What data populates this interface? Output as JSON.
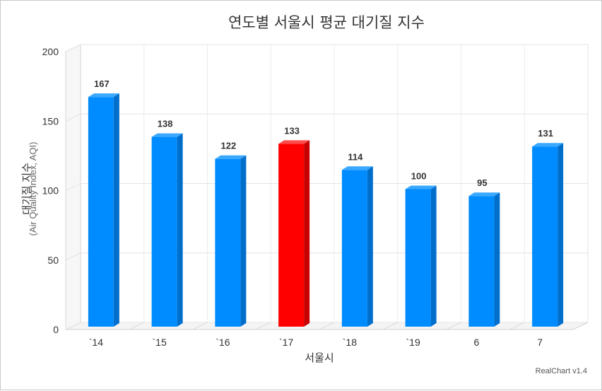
{
  "chart_data": {
    "type": "bar",
    "title": "연도별 서울시 평균 대기질 지수",
    "xlabel": "서울시",
    "ylabel": "대기질 지수",
    "ylabel_sub": "(Air Quality Index, AQI)",
    "categories": [
      "`14",
      "`15",
      "`16",
      "`17",
      "`18",
      "`19",
      "6",
      "7"
    ],
    "values": [
      167,
      138,
      122,
      133,
      114,
      100,
      95,
      131
    ],
    "highlight_index": 3,
    "ylim": [
      0,
      200
    ],
    "yticks": [
      0,
      50,
      100,
      150,
      200
    ],
    "grid": true,
    "colors": {
      "bar_front": "#008cff",
      "bar_side": "#006fcc",
      "bar_top": "#3aa8ff",
      "highlight_front": "#ff0000",
      "highlight_side": "#c80000",
      "highlight_top": "#ff4a4a"
    }
  },
  "credit": "RealChart v1.4"
}
